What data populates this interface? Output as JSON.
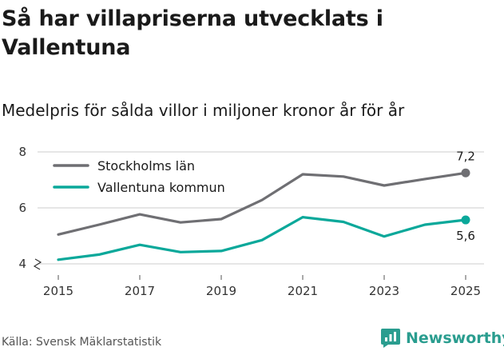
{
  "header": {
    "title": "Så har villapriserna utvecklats i Vallentuna",
    "subtitle": "Medelpris för sålda villor i miljoner kronor år för år"
  },
  "footer": {
    "source": "Källa: Svensk Mäklarstatistik",
    "brand": "Newsworthy"
  },
  "chart_data": {
    "type": "line",
    "x": [
      2015,
      2016,
      2017,
      2018,
      2019,
      2020,
      2021,
      2022,
      2023,
      2024,
      2025
    ],
    "x_ticks": [
      2015,
      2017,
      2019,
      2021,
      2023,
      2025
    ],
    "y_ticks": [
      4,
      6,
      8
    ],
    "ylim": [
      4,
      8
    ],
    "grid": true,
    "y_axis_break": true,
    "legend_position": "top-left",
    "series": [
      {
        "name": "Stockholms län",
        "color": "#6f6f73",
        "values": [
          5.05,
          5.4,
          5.77,
          5.48,
          5.6,
          6.28,
          7.2,
          7.12,
          6.8,
          7.03,
          7.25
        ],
        "end_label": "7,2"
      },
      {
        "name": "Vallentuna kommun",
        "color": "#0aa89a",
        "values": [
          4.15,
          4.33,
          4.68,
          4.42,
          4.46,
          4.85,
          5.67,
          5.5,
          4.98,
          5.4,
          5.57
        ],
        "end_label": "5,6"
      }
    ]
  }
}
